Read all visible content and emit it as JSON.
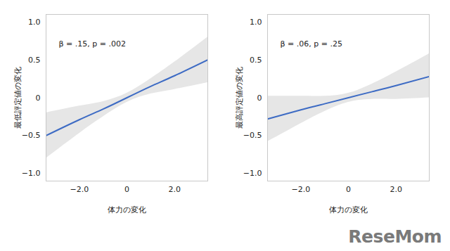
{
  "chart_data": [
    {
      "type": "line",
      "annotation": "β = .15, p = .002",
      "x_label": "体力の変化",
      "y_label": "最低評定値の変化",
      "x": [
        -3.4,
        -2,
        -1,
        0,
        1,
        2,
        3.4
      ],
      "values": [
        -0.5,
        -0.29,
        -0.15,
        0,
        0.15,
        0.29,
        0.5
      ],
      "lower": [
        -0.8,
        -0.47,
        -0.25,
        -0.06,
        0.05,
        0.11,
        0.2
      ],
      "upper": [
        -0.2,
        -0.11,
        -0.05,
        0.06,
        0.25,
        0.47,
        0.8
      ],
      "color": "#3d6bc4",
      "xlim": [
        -3.4,
        3.4
      ],
      "xticks": [
        {
          "value": -2,
          "label": "−2.0"
        },
        0,
        {
          "value": 2,
          "label": "2.0"
        }
      ],
      "ylim": [
        -1.1,
        1.1
      ],
      "yticks": [
        {
          "value": -1,
          "label": "−1.0"
        },
        {
          "value": -0.5,
          "label": "−0.5"
        },
        0,
        0.5,
        {
          "value": 1,
          "label": "1.0"
        }
      ]
    },
    {
      "type": "line",
      "annotation": "β = .06, p = .25",
      "x_label": "体力の変化",
      "y_label": "最高評定値の変化",
      "x": [
        -3.4,
        -2,
        -1,
        0,
        1,
        2,
        3.4
      ],
      "values": [
        -0.28,
        -0.16,
        -0.08,
        0,
        0.08,
        0.16,
        0.28
      ],
      "lower": [
        -0.58,
        -0.34,
        -0.18,
        -0.06,
        -0.02,
        -0.02,
        0
      ],
      "upper": [
        0.02,
        0.02,
        0.02,
        0.06,
        0.18,
        0.34,
        0.58
      ],
      "color": "#3d6bc4",
      "xlim": [
        -3.4,
        3.4
      ],
      "xticks": [
        {
          "value": -2,
          "label": "−2.0"
        },
        0,
        {
          "value": 2,
          "label": "2.0"
        }
      ],
      "ylim": [
        -1.1,
        1.1
      ],
      "yticks": [
        {
          "value": -1,
          "label": "−1.0"
        },
        {
          "value": -0.5,
          "label": "−0.5"
        },
        0,
        0.5,
        {
          "value": 1,
          "label": "1.0"
        }
      ]
    }
  ],
  "watermark": "ReseMom"
}
